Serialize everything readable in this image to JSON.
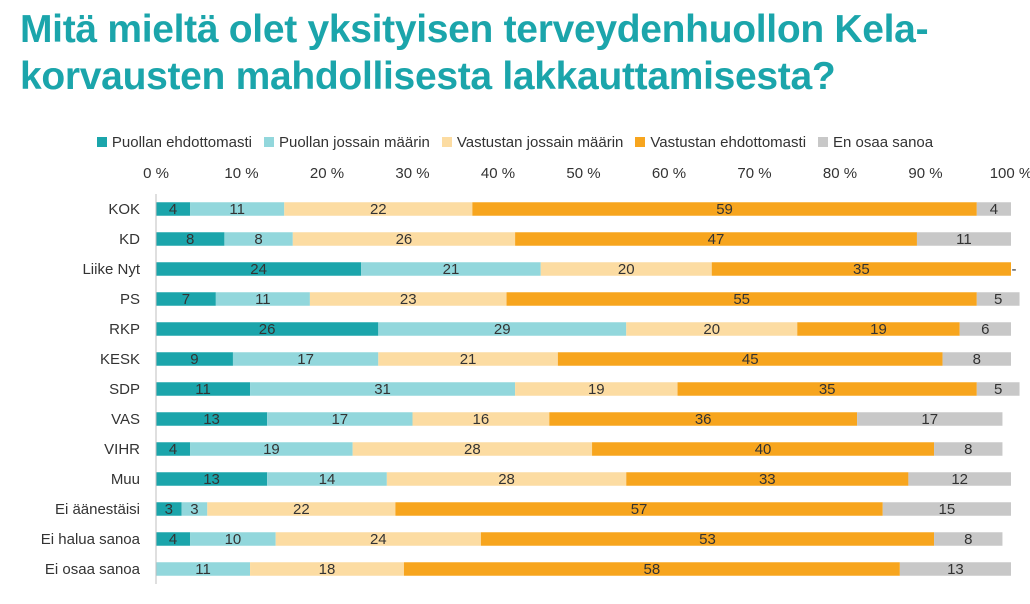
{
  "title": "Mitä mieltä olet yksityisen terveydenhuollon Kela-korvausten mahdollisesta lakkauttamisesta?",
  "chart_data": {
    "type": "bar",
    "orientation": "horizontal",
    "stacked": true,
    "title": "Mitä mieltä olet yksityisen terveydenhuollon Kela-korvausten mahdollisesta lakkauttamisesta?",
    "xlim": [
      0,
      100
    ],
    "x_ticks": [
      "0 %",
      "10 %",
      "20 %",
      "30 %",
      "40 %",
      "50 %",
      "60 %",
      "70 %",
      "80 %",
      "90 %",
      "100 %"
    ],
    "legend_position": "top",
    "categories": [
      "KOK",
      "KD",
      "Liike Nyt",
      "PS",
      "RKP",
      "KESK",
      "SDP",
      "VAS",
      "VIHR",
      "Muu",
      "Ei äänestäisi",
      "Ei halua sanoa",
      "Ei osaa sanoa"
    ],
    "series": [
      {
        "name": "Puollan ehdottomasti",
        "color": "#1BA5AB",
        "values": [
          4,
          8,
          24,
          7,
          26,
          9,
          11,
          13,
          4,
          13,
          3,
          4,
          0
        ],
        "labels": [
          "4",
          "8",
          "24",
          "7",
          "26",
          "9",
          "11",
          "13",
          "4",
          "13",
          "3",
          "4",
          "-"
        ]
      },
      {
        "name": "Puollan jossain määrin",
        "color": "#92D7DC",
        "values": [
          11,
          8,
          21,
          11,
          29,
          17,
          31,
          17,
          19,
          14,
          3,
          10,
          11
        ],
        "labels": [
          "11",
          "8",
          "21",
          "11",
          "29",
          "17",
          "31",
          "17",
          "19",
          "14",
          "3",
          "10",
          "11"
        ]
      },
      {
        "name": "Vastustan jossain määrin",
        "color": "#FCDCA2",
        "values": [
          22,
          26,
          20,
          23,
          20,
          21,
          19,
          16,
          28,
          28,
          22,
          24,
          18
        ],
        "labels": [
          "22",
          "26",
          "20",
          "23",
          "20",
          "21",
          "19",
          "16",
          "28",
          "28",
          "22",
          "24",
          "18"
        ]
      },
      {
        "name": "Vastustan ehdottomasti",
        "color": "#F7A51E",
        "values": [
          59,
          47,
          35,
          55,
          19,
          45,
          35,
          36,
          40,
          33,
          57,
          53,
          58
        ],
        "labels": [
          "59",
          "47",
          "35",
          "55",
          "19",
          "45",
          "35",
          "36",
          "40",
          "33",
          "57",
          "53",
          "58"
        ]
      },
      {
        "name": "En osaa sanoa",
        "color": "#C8C8C8",
        "values": [
          4,
          11,
          0,
          5,
          6,
          8,
          5,
          17,
          8,
          12,
          15,
          8,
          13
        ],
        "labels": [
          "4",
          "11",
          "-",
          "5",
          "6",
          "8",
          "5",
          "17",
          "8",
          "12",
          "15",
          "8",
          "13"
        ]
      }
    ]
  }
}
